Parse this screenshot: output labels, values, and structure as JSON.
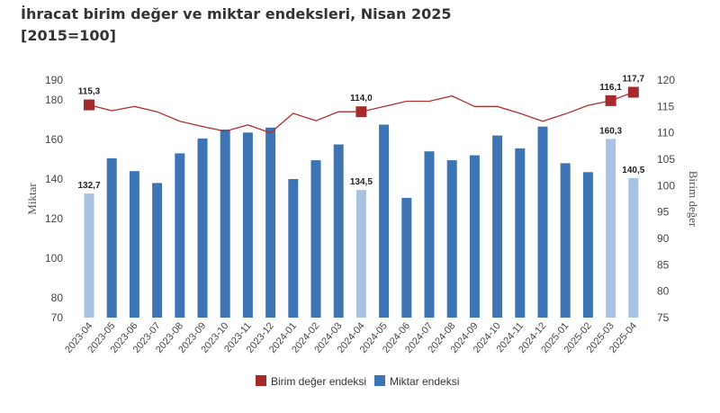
{
  "chart_data": {
    "type": "bar+line",
    "title": "İhracat birim değer ve miktar endeksleri, Nisan 2025",
    "subtitle": "[2015=100]",
    "categories": [
      "2023-04",
      "2023-05",
      "2023-06",
      "2023-07",
      "2023-08",
      "2023-09",
      "2023-10",
      "2023-11",
      "2023-12",
      "2024-01",
      "2024-02",
      "2024-03",
      "2024-04",
      "2024-05",
      "2024-06",
      "2024-07",
      "2024-08",
      "2024-09",
      "2024-10",
      "2024-11",
      "2024-12",
      "2025-01",
      "2025-02",
      "2025-03",
      "2025-04"
    ],
    "left_axis": {
      "label": "Miktar",
      "ticks": [
        "70",
        "80",
        "100",
        "120",
        "140",
        "160",
        "180",
        "190"
      ]
    },
    "right_axis": {
      "label": "Birim değer",
      "ticks": [
        "75",
        "80",
        "85",
        "90",
        "95",
        "100",
        "105",
        "110",
        "115",
        "120"
      ]
    },
    "series": [
      {
        "name": "Miktar endeksi",
        "kind": "bar",
        "axis": "left",
        "color": "#3d75b4",
        "highlight_color": "#a9c2e3",
        "values": [
          132.7,
          150.5,
          144.0,
          138.0,
          153.0,
          160.5,
          165.0,
          163.5,
          166.0,
          140.0,
          149.5,
          157.5,
          134.5,
          167.5,
          130.5,
          154.0,
          149.5,
          152.0,
          162.0,
          155.5,
          166.5,
          148.0,
          143.5,
          160.3,
          140.5
        ],
        "highlighted": [
          "2023-04",
          "2024-04",
          "2025-03",
          "2025-04"
        ],
        "labels": [
          {
            "index": 0,
            "text": "132,7"
          },
          {
            "index": 12,
            "text": "134,5"
          },
          {
            "index": 23,
            "text": "160,3"
          },
          {
            "index": 24,
            "text": "140,5"
          }
        ]
      },
      {
        "name": "Birim değer endeksi",
        "kind": "line",
        "axis": "right",
        "color": "#b03030",
        "marker_color": "#a52a2a",
        "values": [
          115.3,
          114.2,
          115.0,
          114.0,
          112.2,
          111.2,
          110.3,
          111.5,
          110.0,
          113.7,
          112.3,
          114.0,
          114.0,
          115.0,
          116.0,
          116.0,
          117.0,
          115.0,
          115.0,
          113.7,
          112.2,
          113.6,
          115.2,
          116.1,
          117.7
        ],
        "markers": [
          {
            "index": 0,
            "text": "115,3"
          },
          {
            "index": 12,
            "text": "114,0"
          },
          {
            "index": 23,
            "text": "116,1"
          },
          {
            "index": 24,
            "text": "117,7"
          }
        ]
      }
    ],
    "legend": {
      "placement": "bottom-center",
      "items": [
        {
          "label": "Birim değer endeksi",
          "color": "#a52a2a"
        },
        {
          "label": "Miktar endeksi",
          "color": "#3d75b4"
        }
      ]
    },
    "grid": false
  }
}
